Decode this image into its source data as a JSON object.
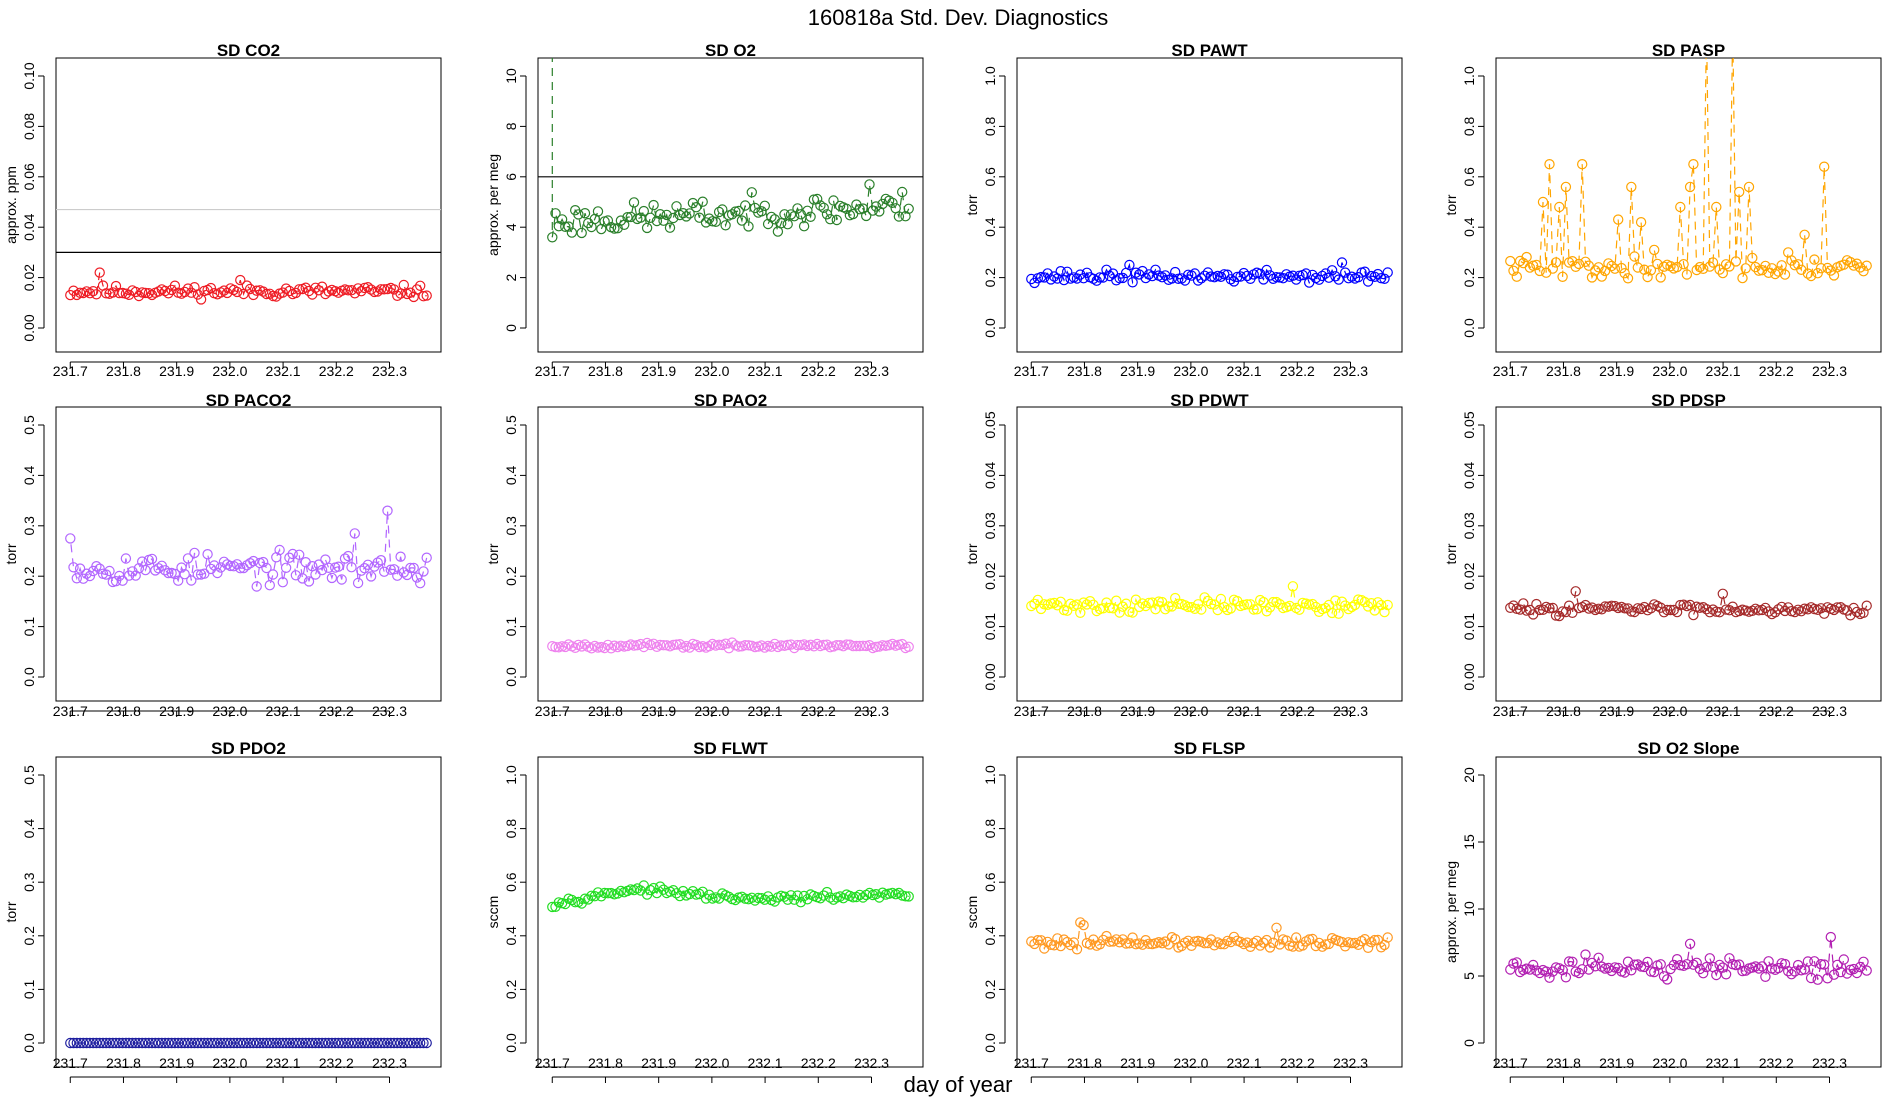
{
  "figure": {
    "title": "160818a   Std. Dev. Diagnostics",
    "xlabel": "day of year"
  },
  "chart_data": [
    {
      "type": "scatter",
      "title": "SD CO2",
      "ylabel": "approx. ppm",
      "color": "#ee1c24",
      "ylim": [
        0,
        0.1
      ],
      "yticks": [
        "0.00",
        "0.02",
        "0.04",
        "0.06",
        "0.08",
        "0.10"
      ],
      "xlim": [
        231.7,
        232.37
      ],
      "xticks": [
        "231.7",
        "231.8",
        "231.9",
        "232.0",
        "232.1",
        "232.2",
        "232.3"
      ],
      "n": 110,
      "base": 0.0145,
      "amp": 0.0035,
      "seed": 11,
      "spikes": [
        [
          9,
          0.022
        ],
        [
          52,
          0.019
        ]
      ],
      "hlines": [
        {
          "y": 0.047,
          "color": "#cccccc"
        },
        {
          "y": 0.03,
          "color": "#000000"
        }
      ]
    },
    {
      "type": "scatter",
      "title": "SD O2",
      "ylabel": "approx. per meg",
      "color": "#2a7f2a",
      "ylim": [
        0,
        10
      ],
      "yticks": [
        "0",
        "2",
        "4",
        "6",
        "8",
        "10"
      ],
      "xlim": [
        231.7,
        232.37
      ],
      "xticks": [
        "231.7",
        "231.8",
        "231.9",
        "232.0",
        "232.1",
        "232.2",
        "232.3"
      ],
      "n": 110,
      "base": 4.4,
      "amp": 0.9,
      "seed": 23,
      "trend": 0.6,
      "spikes": [
        [
          0,
          3.6
        ],
        [
          97,
          5.7
        ]
      ],
      "lead_spike": 15,
      "hlines": [
        {
          "y": 6,
          "color": "#000000"
        }
      ]
    },
    {
      "type": "scatter",
      "title": "SD PAWT",
      "ylabel": "torr",
      "color": "#0000ff",
      "ylim": [
        0,
        1
      ],
      "yticks": [
        "0.0",
        "0.2",
        "0.4",
        "0.6",
        "0.8",
        "1.0"
      ],
      "xlim": [
        231.7,
        232.37
      ],
      "xticks": [
        "231.7",
        "231.8",
        "231.9",
        "232.0",
        "232.1",
        "232.2",
        "232.3"
      ],
      "n": 110,
      "base": 0.205,
      "amp": 0.035,
      "seed": 37,
      "spikes": [
        [
          95,
          0.26
        ],
        [
          30,
          0.25
        ]
      ]
    },
    {
      "type": "scatter",
      "title": "SD PASP",
      "ylabel": "torr",
      "color": "#ffa500",
      "ylim": [
        0,
        1
      ],
      "yticks": [
        "0.0",
        "0.2",
        "0.4",
        "0.6",
        "0.8",
        "1.0"
      ],
      "xlim": [
        231.7,
        232.37
      ],
      "xticks": [
        "231.7",
        "231.8",
        "231.9",
        "232.0",
        "232.1",
        "232.2",
        "232.3"
      ],
      "n": 110,
      "base": 0.24,
      "amp": 0.06,
      "seed": 41,
      "spikes": [
        [
          10,
          0.5
        ],
        [
          12,
          0.65
        ],
        [
          15,
          0.48
        ],
        [
          17,
          0.56
        ],
        [
          22,
          0.65
        ],
        [
          33,
          0.43
        ],
        [
          37,
          0.56
        ],
        [
          40,
          0.42
        ],
        [
          52,
          0.48
        ],
        [
          55,
          0.56
        ],
        [
          56,
          0.65
        ],
        [
          60,
          1.2
        ],
        [
          63,
          0.48
        ],
        [
          68,
          1.2
        ],
        [
          70,
          0.54
        ],
        [
          73,
          0.56
        ],
        [
          90,
          0.37
        ],
        [
          96,
          0.64
        ],
        [
          44,
          0.31
        ],
        [
          85,
          0.3
        ]
      ]
    },
    {
      "type": "scatter",
      "title": "SD PACO2",
      "ylabel": "torr",
      "color": "#b266ff",
      "ylim": [
        0,
        0.5
      ],
      "yticks": [
        "0.0",
        "0.1",
        "0.2",
        "0.3",
        "0.4",
        "0.5"
      ],
      "xlim": [
        231.7,
        232.37
      ],
      "xticks": [
        "231.7",
        "231.8",
        "231.9",
        "232.0",
        "232.1",
        "232.2",
        "232.3"
      ],
      "n": 110,
      "base": 0.215,
      "amp": 0.045,
      "seed": 53,
      "spikes": [
        [
          0,
          0.275
        ],
        [
          97,
          0.33
        ],
        [
          87,
          0.285
        ]
      ]
    },
    {
      "type": "scatter",
      "title": "SD PAO2",
      "ylabel": "torr",
      "color": "#ee82ee",
      "ylim": [
        0,
        0.5
      ],
      "yticks": [
        "0.0",
        "0.1",
        "0.2",
        "0.3",
        "0.4",
        "0.5"
      ],
      "xlim": [
        231.7,
        232.37
      ],
      "xticks": [
        "231.7",
        "231.8",
        "231.9",
        "232.0",
        "232.1",
        "232.2",
        "232.3"
      ],
      "n": 110,
      "base": 0.062,
      "amp": 0.007,
      "seed": 67,
      "spikes": []
    },
    {
      "type": "scatter",
      "title": "SD PDWT",
      "ylabel": "torr",
      "color": "#ffff00",
      "ylim": [
        0,
        0.05
      ],
      "yticks": [
        "0.00",
        "0.01",
        "0.02",
        "0.03",
        "0.04",
        "0.05"
      ],
      "xlim": [
        231.7,
        232.37
      ],
      "xticks": [
        "231.7",
        "231.8",
        "231.9",
        "232.0",
        "232.1",
        "232.2",
        "232.3"
      ],
      "n": 110,
      "base": 0.0142,
      "amp": 0.0022,
      "seed": 71,
      "spikes": [
        [
          80,
          0.018
        ]
      ]
    },
    {
      "type": "scatter",
      "title": "SD PDSP",
      "ylabel": "torr",
      "color": "#a52a2a",
      "ylim": [
        0,
        0.05
      ],
      "yticks": [
        "0.00",
        "0.01",
        "0.02",
        "0.03",
        "0.04",
        "0.05"
      ],
      "xlim": [
        231.7,
        232.37
      ],
      "xticks": [
        "231.7",
        "231.8",
        "231.9",
        "232.0",
        "232.1",
        "232.2",
        "232.3"
      ],
      "n": 110,
      "base": 0.0135,
      "amp": 0.0016,
      "seed": 83,
      "spikes": [
        [
          20,
          0.017
        ],
        [
          65,
          0.0165
        ]
      ]
    },
    {
      "type": "scatter",
      "title": "SD PDO2",
      "ylabel": "torr",
      "color": "#1f1fa0",
      "ylim": [
        0,
        0.5
      ],
      "yticks": [
        "0.0",
        "0.1",
        "0.2",
        "0.3",
        "0.4",
        "0.5"
      ],
      "xlim": [
        231.7,
        232.37
      ],
      "xticks": [
        "231.7",
        "231.8",
        "231.9",
        "232.0",
        "232.1",
        "232.2",
        "232.3"
      ],
      "n": 110,
      "base": 0.0,
      "amp": 0.0,
      "seed": 89,
      "spikes": []
    },
    {
      "type": "scatter",
      "title": "SD FLWT",
      "ylabel": "sccm",
      "color": "#22dd22",
      "ylim": [
        0,
        1
      ],
      "yticks": [
        "0.0",
        "0.2",
        "0.4",
        "0.6",
        "0.8",
        "1.0"
      ],
      "xlim": [
        231.7,
        232.37
      ],
      "xticks": [
        "231.7",
        "231.8",
        "231.9",
        "232.0",
        "232.1",
        "232.2",
        "232.3"
      ],
      "n": 110,
      "base": 0.55,
      "amp": 0.02,
      "seed": 97,
      "spikes": [],
      "shape": [
        [
          0,
          0.52
        ],
        [
          25,
          0.575
        ],
        [
          60,
          0.535
        ],
        [
          110,
          0.555
        ]
      ]
    },
    {
      "type": "scatter",
      "title": "SD FLSP",
      "ylabel": "sccm",
      "color": "#ff9922",
      "ylim": [
        0,
        1
      ],
      "yticks": [
        "0.0",
        "0.2",
        "0.4",
        "0.6",
        "0.8",
        "1.0"
      ],
      "xlim": [
        231.7,
        232.37
      ],
      "xticks": [
        "231.7",
        "231.8",
        "231.9",
        "232.0",
        "232.1",
        "232.2",
        "232.3"
      ],
      "n": 110,
      "base": 0.375,
      "amp": 0.03,
      "seed": 101,
      "spikes": [
        [
          15,
          0.45
        ],
        [
          16,
          0.44
        ],
        [
          75,
          0.43
        ]
      ]
    },
    {
      "type": "scatter",
      "title": "SD O2 Slope",
      "ylabel": "approx. per meg",
      "color": "#b21fb2",
      "ylim": [
        0,
        20
      ],
      "yticks": [
        "0",
        "5",
        "10",
        "15",
        "20"
      ],
      "xlim": [
        231.7,
        232.37
      ],
      "xticks": [
        "231.7",
        "231.8",
        "231.9",
        "232.0",
        "232.1",
        "232.2",
        "232.3"
      ],
      "n": 110,
      "base": 5.6,
      "amp": 1.1,
      "seed": 107,
      "spikes": [
        [
          98,
          7.9
        ],
        [
          55,
          7.4
        ]
      ]
    }
  ]
}
